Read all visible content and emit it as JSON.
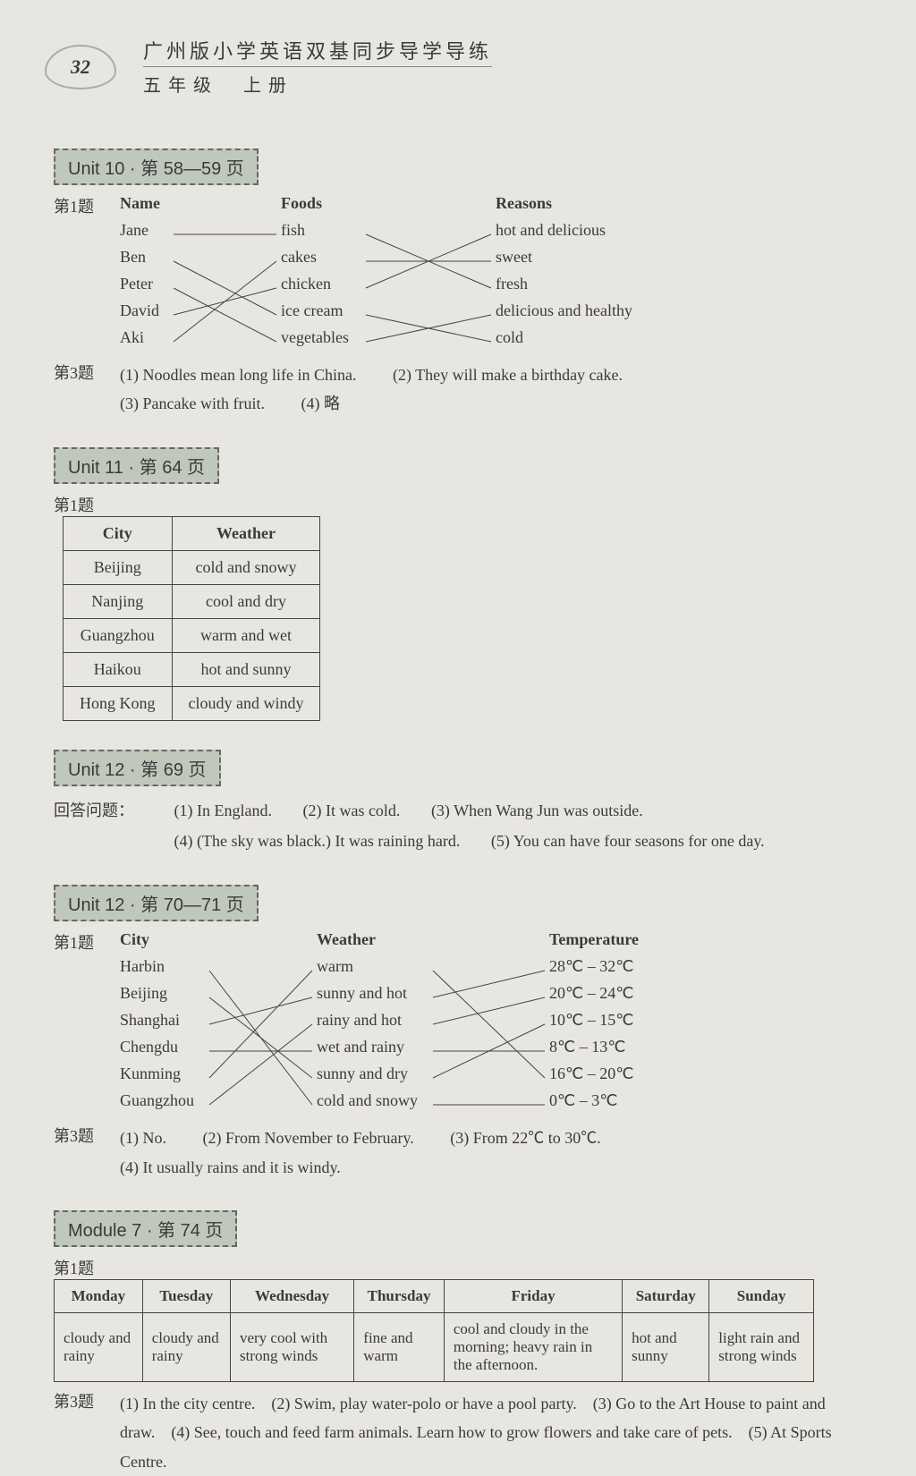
{
  "page_number": "32",
  "header_title": "广州版小学英语双基同步导学导练",
  "header_sub": "五年级　上册",
  "unit10": {
    "tag": "Unit 10 · 第 58—59 页",
    "q1_label": "第1题",
    "headers": [
      "Name",
      "Foods",
      "Reasons"
    ],
    "names": [
      "Jane",
      "Ben",
      "Peter",
      "David",
      "Aki"
    ],
    "foods": [
      "fish",
      "cakes",
      "chicken",
      "ice cream",
      "vegetables"
    ],
    "reasons": [
      "hot and delicious",
      "sweet",
      "fresh",
      "delicious and healthy",
      "cold"
    ],
    "lines_ab": [
      [
        0,
        0
      ],
      [
        1,
        3
      ],
      [
        2,
        4
      ],
      [
        3,
        2
      ],
      [
        4,
        1
      ]
    ],
    "lines_bc": [
      [
        0,
        2
      ],
      [
        1,
        1
      ],
      [
        2,
        0
      ],
      [
        3,
        4
      ],
      [
        4,
        3
      ]
    ],
    "q3_label": "第3题",
    "q3_items": [
      "(1) Noodles mean long life in China.",
      "(2) They will make a birthday cake.",
      "(3) Pancake with fruit.",
      "(4) 略"
    ]
  },
  "unit11": {
    "tag": "Unit 11 · 第 64 页",
    "q1_label": "第1题",
    "table_headers": [
      "City",
      "Weather"
    ],
    "rows": [
      [
        "Beijing",
        "cold and snowy"
      ],
      [
        "Nanjing",
        "cool and dry"
      ],
      [
        "Guangzhou",
        "warm and wet"
      ],
      [
        "Haikou",
        "hot and sunny"
      ],
      [
        "Hong Kong",
        "cloudy and windy"
      ]
    ]
  },
  "unit12a": {
    "tag": "Unit 12 · 第 69 页",
    "q_label": "回答问题：",
    "items": [
      "(1) In England.",
      "(2) It was cold.",
      "(3) When Wang Jun was outside.",
      "(4) (The sky was black.) It was raining hard.",
      "(5) You can have four seasons for one day."
    ]
  },
  "unit12b": {
    "tag": "Unit 12 · 第 70—71 页",
    "q1_label": "第1题",
    "headers": [
      "City",
      "Weather",
      "Temperature"
    ],
    "cities": [
      "Harbin",
      "Beijing",
      "Shanghai",
      "Chengdu",
      "Kunming",
      "Guangzhou"
    ],
    "weathers": [
      "warm",
      "sunny and hot",
      "rainy and hot",
      "wet and rainy",
      "sunny and dry",
      "cold and snowy"
    ],
    "temps": [
      "28℃ – 32℃",
      "20℃ – 24℃",
      "10℃ – 15℃",
      "8℃ – 13℃",
      "16℃ – 20℃",
      "0℃ – 3℃"
    ],
    "lines_ab": [
      [
        0,
        5
      ],
      [
        1,
        4
      ],
      [
        2,
        1
      ],
      [
        3,
        3
      ],
      [
        4,
        0
      ],
      [
        5,
        2
      ]
    ],
    "lines_bc": [
      [
        0,
        4
      ],
      [
        1,
        0
      ],
      [
        2,
        1
      ],
      [
        3,
        3
      ],
      [
        4,
        2
      ],
      [
        5,
        5
      ]
    ],
    "q3_label": "第3题",
    "q3_items": [
      "(1) No.",
      "(2) From November to February.",
      "(3) From 22℃ to 30℃.",
      "(4) It usually rains and it is windy."
    ]
  },
  "module7": {
    "tag": "Module 7 · 第 74 页",
    "q1_label": "第1题",
    "days": [
      "Monday",
      "Tuesday",
      "Wednesday",
      "Thursday",
      "Friday",
      "Saturday",
      "Sunday"
    ],
    "cells": [
      "cloudy and rainy",
      "cloudy and rainy",
      "very cool with strong winds",
      "fine and warm",
      "cool and cloudy in the morning; heavy rain in the afternoon.",
      "hot and sunny",
      "light rain and strong winds"
    ],
    "q3_label": "第3题",
    "q3_text": "(1) In the city centre.　(2) Swim, play water-polo or have a pool party.　(3) Go to the Art House to paint and draw.　(4) See, touch and feed farm animals. Learn how to grow flowers and take care of pets.　(5) At Sports Centre."
  }
}
